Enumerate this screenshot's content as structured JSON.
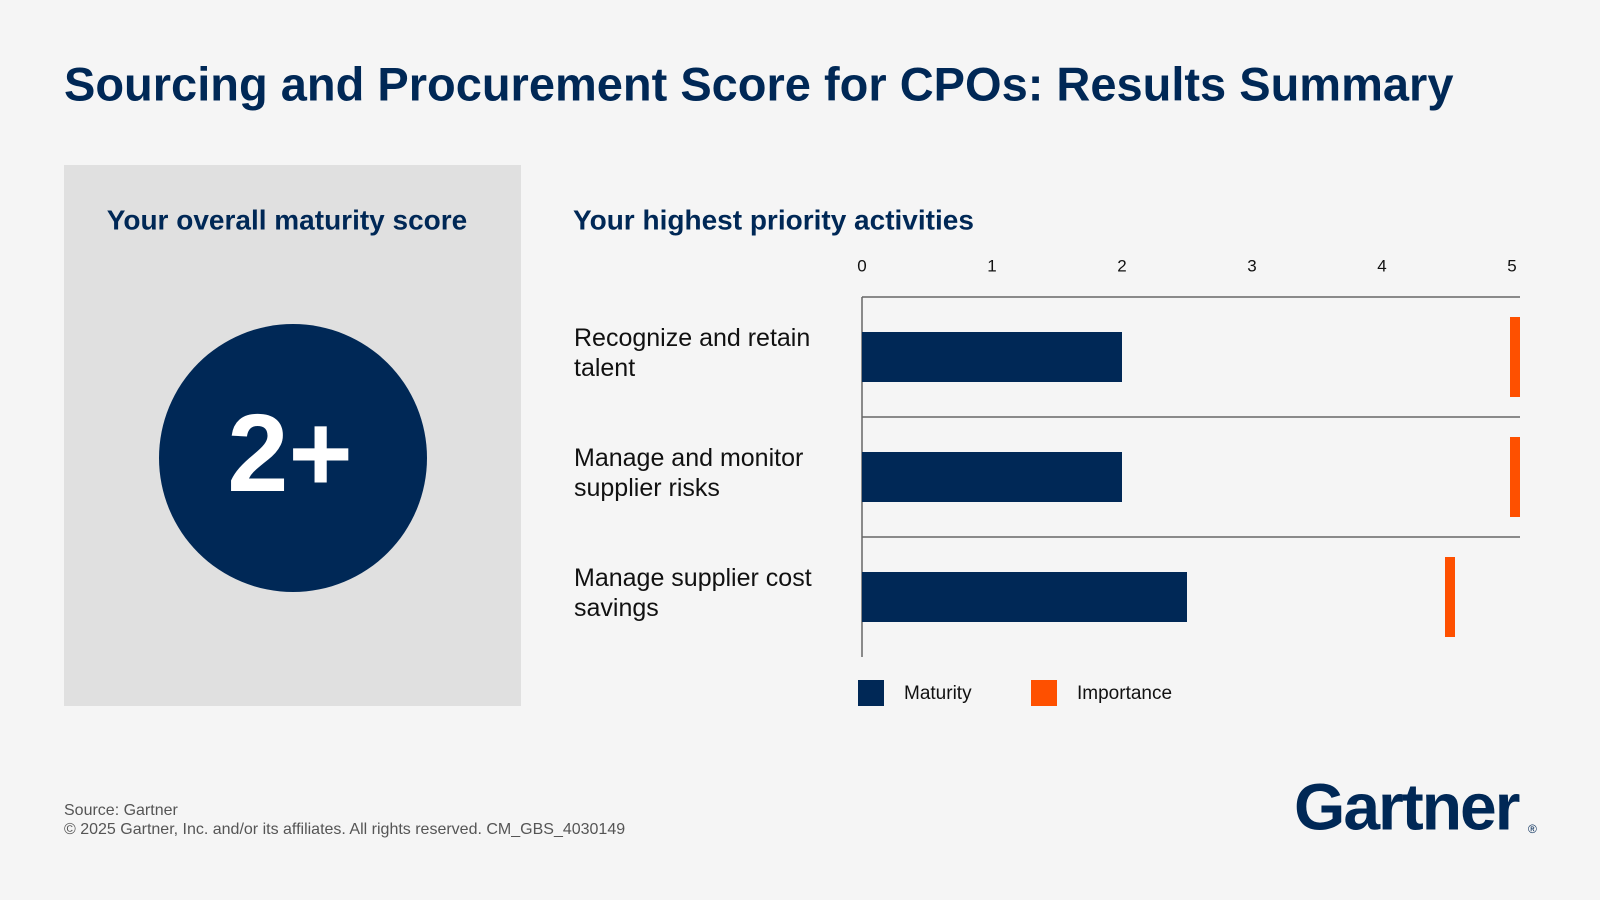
{
  "title": "Sourcing and Procurement Score for CPOs: Results Summary",
  "score_panel": {
    "title": "Your overall maturity score",
    "score": "2+"
  },
  "chart_data": {
    "type": "bar",
    "orientation": "horizontal",
    "title": "Your highest priority activities",
    "categories": [
      "Recognize and retain talent",
      "Manage and monitor supplier risks",
      "Manage supplier cost savings"
    ],
    "series": [
      {
        "name": "Maturity",
        "color": "#002856",
        "mark": "bar",
        "values": [
          2,
          2,
          2.5
        ]
      },
      {
        "name": "Importance",
        "color": "#fe5000",
        "mark": "tick",
        "values": [
          5,
          5,
          4.5
        ]
      }
    ],
    "xlim": [
      0,
      5
    ],
    "xticks": [
      0,
      1,
      2,
      3,
      4,
      5
    ]
  },
  "footer": {
    "source": "Source: Gartner",
    "copyright": "© 2025 Gartner, Inc. and/or its affiliates. All rights reserved. CM_GBS_4030149",
    "logo": "Gartner",
    "logo_mark": "®"
  }
}
